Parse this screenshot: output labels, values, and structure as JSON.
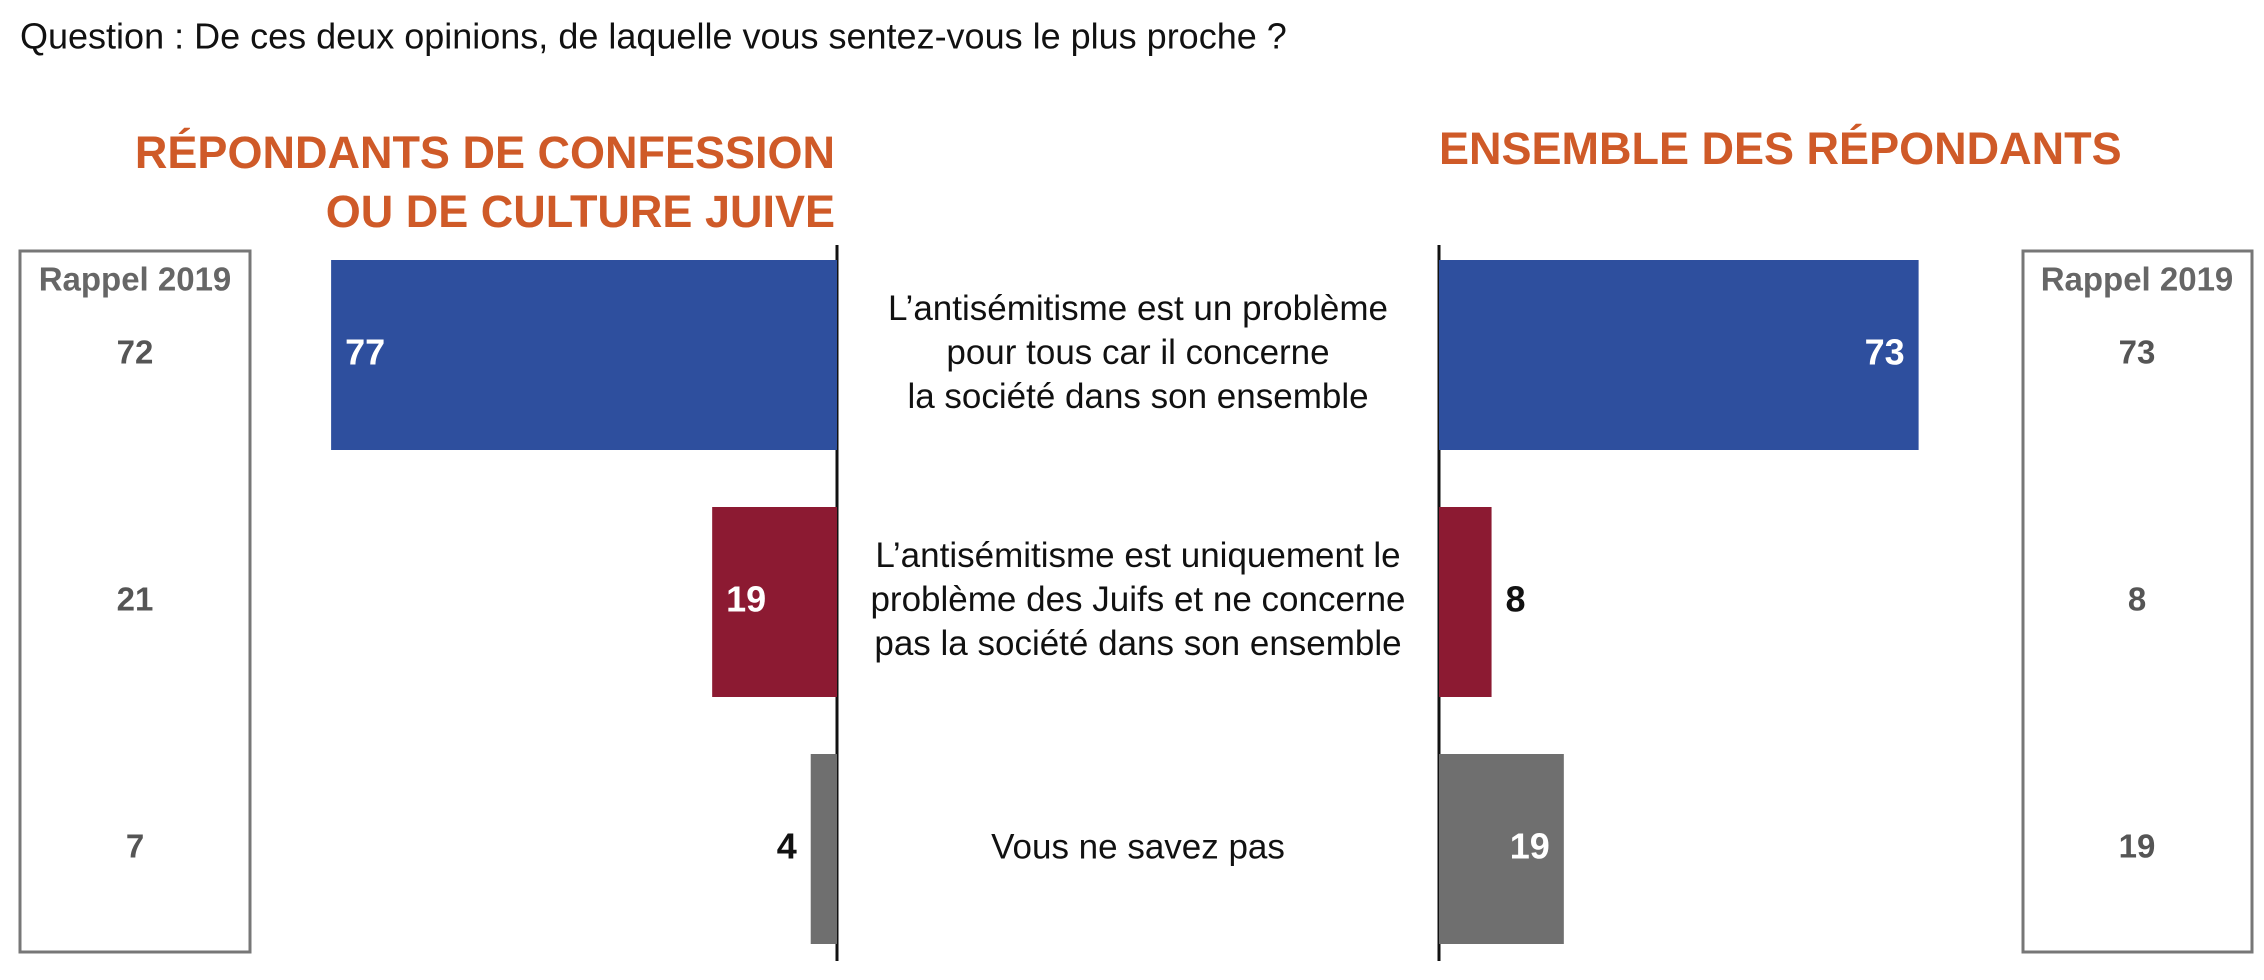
{
  "title": "Question : De ces deux opinions, de laquelle vous sentez-vous le plus proche ?",
  "chart_data": {
    "type": "bar",
    "categories": [
      "L’antisémitisme est un problème\npour tous car il concerne\nla société dans son ensemble",
      "L’antisémitisme est uniquement le\nproblème des Juifs et ne concerne\npas la société dans son ensemble",
      "Vous ne savez pas"
    ],
    "colors": [
      "#2e4f9e",
      "#8c1a32",
      "#6f6f6f"
    ],
    "series": [
      {
        "name": "RÉPONDANTS DE CONFESSION\nOU DE CULTURE JUIVE",
        "values": [
          77,
          19,
          4
        ],
        "recall_label": "Rappel 2019",
        "recall_values": [
          72,
          21,
          7
        ]
      },
      {
        "name": "ENSEMBLE DES RÉPONDANTS",
        "values": [
          73,
          8,
          19
        ],
        "recall_label": "Rappel 2019",
        "recall_values": [
          73,
          8,
          19
        ]
      }
    ]
  }
}
